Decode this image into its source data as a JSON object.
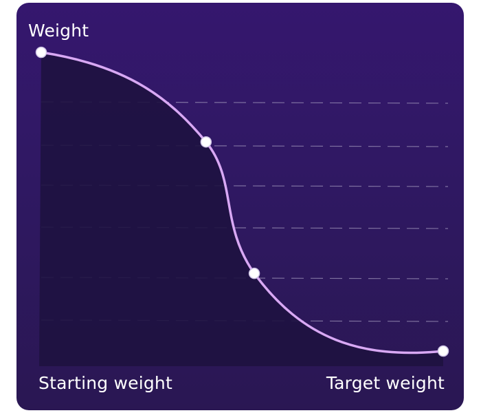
{
  "chart_data": {
    "type": "line",
    "title": "",
    "ylabel": "Weight",
    "x_start_label": "Starting weight",
    "x_end_label": "Target weight",
    "grid": true,
    "legend": "none",
    "series": [
      {
        "markers": [
          {
            "x": 0.0,
            "y": 1.0
          },
          {
            "x": 0.41,
            "y": 0.7
          },
          {
            "x": 0.53,
            "y": 0.26
          },
          {
            "x": 1.0,
            "y": 0.0
          }
        ]
      }
    ]
  },
  "colors": {
    "background_top": "#35176e",
    "background_bottom": "#2a1753",
    "area_fill": "#1e1240",
    "line": "#d8a8f4",
    "marker": "#ffffff",
    "gridline": "#9a8fb6"
  }
}
